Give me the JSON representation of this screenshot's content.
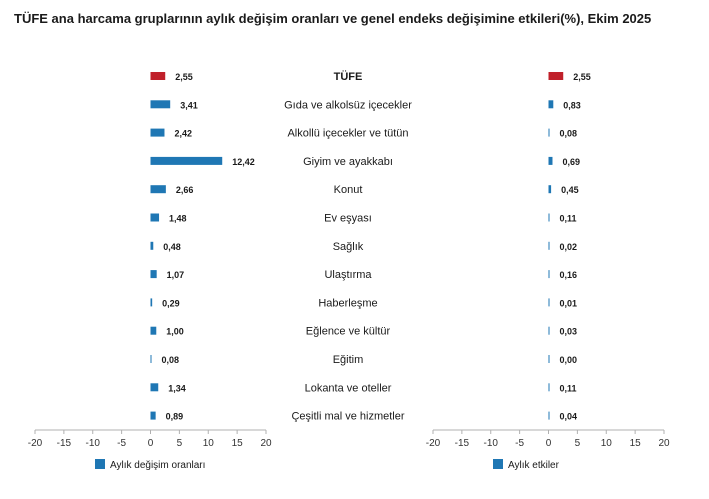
{
  "title": "TÜFE ana harcama gruplarının aylık değişim oranları ve genel endeks değişimine etkileri(%), Ekim 2025",
  "colors": {
    "total": "#c0202a",
    "series": "#1f77b4",
    "axis": "#b0b0b0"
  },
  "chart_data": [
    {
      "type": "bar",
      "orientation": "horizontal",
      "categories": [
        "TÜFE",
        "Gıda ve alkolsüz içecekler",
        "Alkollü içecekler ve tütün",
        "Giyim ve ayakkabı",
        "Konut",
        "Ev eşyası",
        "Sağlık",
        "Ulaştırma",
        "Haberleşme",
        "Eğlence ve kültür",
        "Eğitim",
        "Lokanta ve oteller",
        "Çeşitli mal ve hizmetler"
      ],
      "series": [
        {
          "name": "Aylık değişim oranları",
          "values": [
            2.55,
            3.41,
            2.42,
            12.42,
            2.66,
            1.48,
            0.48,
            1.07,
            0.29,
            1.0,
            0.08,
            1.34,
            0.89
          ]
        }
      ],
      "value_labels": [
        "2,55",
        "3,41",
        "2,42",
        "12,42",
        "2,66",
        "1,48",
        "0,48",
        "1,07",
        "0,29",
        "1,00",
        "0,08",
        "1,34",
        "0,89"
      ],
      "xlim": [
        -20,
        20
      ],
      "xticks": [
        -20,
        -15,
        -10,
        -5,
        0,
        5,
        10,
        15,
        20
      ],
      "legend": "bottom-left"
    },
    {
      "type": "bar",
      "orientation": "horizontal",
      "categories": [
        "TÜFE",
        "Gıda ve alkolsüz içecekler",
        "Alkollü içecekler ve tütün",
        "Giyim ve ayakkabı",
        "Konut",
        "Ev eşyası",
        "Sağlık",
        "Ulaştırma",
        "Haberleşme",
        "Eğlence ve kültür",
        "Eğitim",
        "Lokanta ve oteller",
        "Çeşitli mal ve hizmetler"
      ],
      "series": [
        {
          "name": "Aylık etkiler",
          "values": [
            2.55,
            0.83,
            0.08,
            0.69,
            0.45,
            0.11,
            0.02,
            0.16,
            0.01,
            0.03,
            0.0,
            0.11,
            0.04
          ]
        }
      ],
      "value_labels": [
        "2,55",
        "0,83",
        "0,08",
        "0,69",
        "0,45",
        "0,11",
        "0,02",
        "0,16",
        "0,01",
        "0,03",
        "0,00",
        "0,11",
        "0,04"
      ],
      "xlim": [
        -20,
        20
      ],
      "xticks": [
        -20,
        -15,
        -10,
        -5,
        0,
        5,
        10,
        15,
        20
      ],
      "legend": "bottom-left"
    }
  ]
}
